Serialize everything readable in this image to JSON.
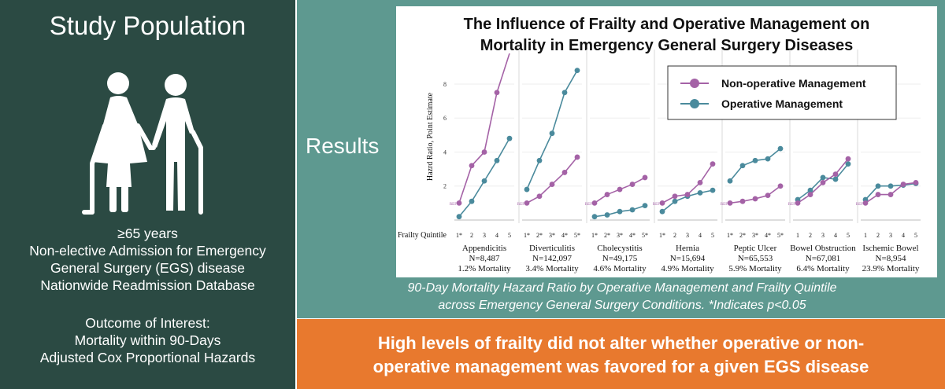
{
  "left_panel": {
    "title": "Study Population",
    "icon": "elderly-couple-icon",
    "criteria": [
      "≥65 years",
      "Non-elective Admission for Emergency",
      "General Surgery (EGS) disease",
      "Nationwide Readmission Database"
    ],
    "outcome_lines": [
      "Outcome of Interest:",
      "Mortality within 90-Days",
      "Adjusted Cox Proportional Hazards"
    ]
  },
  "results_label": "Results",
  "caption_lines": [
    "90-Day Mortality Hazard Ratio by Operative Management and Frailty Quintile",
    "across Emergency General Surgery Conditions. *Indicates p<0.05"
  ],
  "conclusion_lines": [
    "High levels of frailty did not alter whether operative or non-",
    "operative management was favored for a given EGS disease"
  ],
  "colors": {
    "left_bg": "#2b4a43",
    "teal_bg": "#5e9990",
    "orange_bg": "#e8792e",
    "non_operative": "#a462a6",
    "operative": "#4a8a9c"
  },
  "chart_data": {
    "type": "line",
    "title_lines": [
      "The Influence of Frailty and Operative Management on",
      "Mortality in Emergency General Surgery Diseases"
    ],
    "ylabel": "Hazrd Ratio, Point Estimate",
    "xlabel": "Frailty Quintile",
    "yticks": [
      2,
      4,
      6,
      8
    ],
    "ylim": [
      0,
      9.8
    ],
    "ref_label": "REF",
    "legend": {
      "position": "top-right",
      "entries": [
        "Non-operative Management",
        "Operative Management"
      ]
    },
    "series_names": [
      "Non-operative Management",
      "Operative Management"
    ],
    "diseases": [
      {
        "name": "Appendicitis",
        "n": "N=8,487",
        "mortality": "1.2% Mortality",
        "ticks": [
          "1*",
          "2",
          "3",
          "4",
          "5"
        ],
        "non_operative": [
          1,
          3.2,
          4.0,
          7.5,
          9.9
        ],
        "operative": [
          0.2,
          1.1,
          2.3,
          3.5,
          4.8
        ]
      },
      {
        "name": "Diverticulitis",
        "n": "N=142,097",
        "mortality": "3.4% Mortality",
        "ticks": [
          "1*",
          "2*",
          "3*",
          "4*",
          "5*"
        ],
        "non_operative": [
          1,
          1.4,
          2.1,
          2.8,
          3.7
        ],
        "operative": [
          1.8,
          3.5,
          5.1,
          7.5,
          8.8
        ]
      },
      {
        "name": "Cholecystitis",
        "n": "N=49,175",
        "mortality": "4.6% Mortality",
        "ticks": [
          "1*",
          "2*",
          "3*",
          "4*",
          "5*"
        ],
        "non_operative": [
          1,
          1.5,
          1.8,
          2.1,
          2.5
        ],
        "operative": [
          0.2,
          0.3,
          0.5,
          0.6,
          0.85
        ]
      },
      {
        "name": "Hernia",
        "n": "N=15,694",
        "mortality": "4.9% Mortality",
        "ticks": [
          "1*",
          "2",
          "3",
          "4",
          "5"
        ],
        "non_operative": [
          1,
          1.4,
          1.5,
          2.2,
          3.3
        ],
        "operative": [
          0.5,
          1.1,
          1.4,
          1.6,
          1.75
        ]
      },
      {
        "name": "Peptic Ulcer",
        "n": "N=65,553",
        "mortality": "5.9% Mortality",
        "ticks": [
          "1*",
          "2*",
          "3*",
          "4*",
          "5*"
        ],
        "non_operative": [
          1,
          1.1,
          1.25,
          1.45,
          2.0
        ],
        "operative": [
          2.3,
          3.2,
          3.5,
          3.6,
          4.2
        ]
      },
      {
        "name": "Bowel Obstruction",
        "n": "N=67,081",
        "mortality": "6.4% Mortality",
        "ticks": [
          "1",
          "2",
          "3",
          "4",
          "5"
        ],
        "non_operative": [
          1,
          1.5,
          2.2,
          2.7,
          3.6
        ],
        "operative": [
          1.2,
          1.75,
          2.5,
          2.4,
          3.3
        ]
      },
      {
        "name": "Ischemic Bowel",
        "n": "N=8,954",
        "mortality": "23.9% Mortality",
        "ticks": [
          "1",
          "2",
          "3",
          "4",
          "5"
        ],
        "non_operative": [
          1,
          1.5,
          1.5,
          2.1,
          2.2
        ],
        "operative": [
          1.2,
          2.0,
          2.0,
          2.05,
          2.15
        ]
      }
    ]
  }
}
